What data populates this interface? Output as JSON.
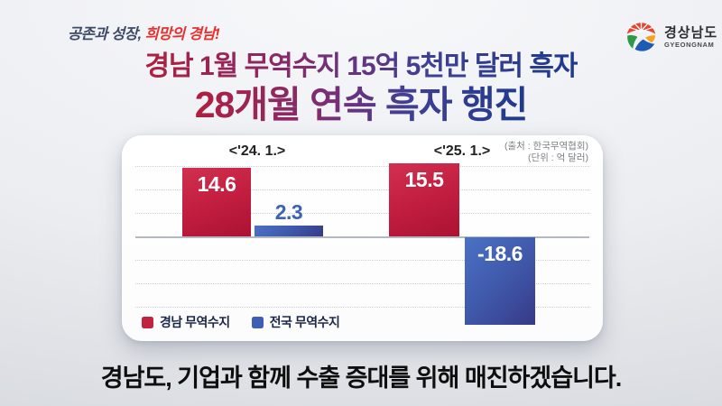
{
  "header": {
    "slogan_part1": "공존과 성장, ",
    "slogan_part2": "희망의 경남!",
    "logo_kr": "경상남도",
    "logo_en": "GYEONGNAM"
  },
  "title_line1": "경남 1월 무역수지 15억 5천만 달러 흑자",
  "title_line2": "28개월 연속 흑자 행진",
  "chart_data": {
    "type": "bar",
    "categories": [
      "<'24. 1.>",
      "<'25. 1.>"
    ],
    "series": [
      {
        "name": "경남 무역수지",
        "color": "#c41f3e",
        "values": [
          14.6,
          15.5
        ]
      },
      {
        "name": "전국 무역수지",
        "color": "#3e63b8",
        "values": [
          2.3,
          -18.6
        ]
      }
    ],
    "source_label": "(출처 : 한국무역협회)",
    "unit_label": "(단위 : 억 달러)",
    "ylim": [
      -20,
      17
    ],
    "gridline_values": [
      15,
      10,
      5,
      0,
      -5,
      -10,
      -15
    ],
    "grid": true,
    "legend_position": "bottom-left"
  },
  "footer_strong": "경남도, 기업과 함께 수출 증대",
  "footer_rest": "를 위해 매진하겠습니다.",
  "icons": {
    "logo_emblem": "gyeongnam-sunrise-flower-emblem",
    "legend_swatch": "rounded-square"
  },
  "colors": {
    "gyeongnam_bar": "#c41f3e",
    "national_bar": "#3e63b8",
    "title_gradient_start": "#b01f3e",
    "title_gradient_end": "#1e3a8c",
    "slogan_navy": "#3e4a66",
    "slogan_red": "#e8312f",
    "value_label_outside": "#3a63b5",
    "card_bg": "#ffffff",
    "page_bg": "#e9ebef"
  }
}
